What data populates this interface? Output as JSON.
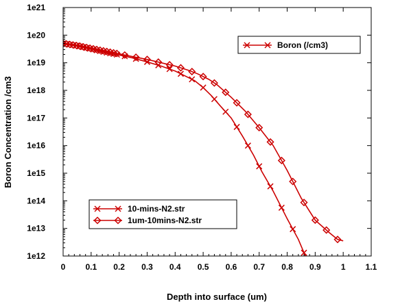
{
  "chart_data": {
    "type": "line",
    "xlabel": "Depth into surface (um)",
    "ylabel": "Boron Concentration /cm3",
    "xlim": [
      0,
      1.1
    ],
    "ylim_exponent": [
      12,
      21
    ],
    "y_scale": "log",
    "x_ticks": [
      "0",
      "0.1",
      "0.2",
      "0.3",
      "0.4",
      "0.5",
      "0.6",
      "0.7",
      "0.8",
      "0.9",
      "1",
      "1.1"
    ],
    "y_ticks": [
      "1e12",
      "1e13",
      "1e14",
      "1e15",
      "1e16",
      "1e17",
      "1e18",
      "1e19",
      "1e20",
      "1e21"
    ],
    "grid": false,
    "legends": [
      {
        "entries": [
          "Boron (/cm3)"
        ],
        "placement": "top-right"
      },
      {
        "entries": [
          "10-mins-N2.str",
          "1um-10mins-N2.str"
        ],
        "placement": "bottom-left"
      }
    ],
    "series": [
      {
        "name": "10-mins-N2.str",
        "marker": "x",
        "color": "#cc0000",
        "x": [
          0,
          0.05,
          0.1,
          0.15,
          0.2,
          0.25,
          0.3,
          0.35,
          0.4,
          0.43,
          0.47,
          0.5,
          0.53,
          0.56,
          0.6,
          0.64,
          0.68,
          0.71,
          0.75,
          0.8,
          0.84,
          0.865
        ],
        "y_log10": [
          19.7,
          19.62,
          19.5,
          19.38,
          19.28,
          19.17,
          19.03,
          18.88,
          18.7,
          18.55,
          18.35,
          18.1,
          17.8,
          17.45,
          17.0,
          16.35,
          15.65,
          15.05,
          14.35,
          13.35,
          12.6,
          12.0
        ]
      },
      {
        "name": "1um-10mins-N2.str",
        "marker": "diamond",
        "color": "#cc0000",
        "x": [
          0,
          0.05,
          0.1,
          0.15,
          0.2,
          0.25,
          0.3,
          0.35,
          0.4,
          0.45,
          0.48,
          0.52,
          0.55,
          0.6,
          0.65,
          0.7,
          0.75,
          0.8,
          0.85,
          0.9,
          0.95,
          0.98,
          1.0
        ],
        "y_log10": [
          19.7,
          19.62,
          19.52,
          19.42,
          19.32,
          19.22,
          19.12,
          19.0,
          18.88,
          18.72,
          18.6,
          18.4,
          18.2,
          17.75,
          17.25,
          16.65,
          16.0,
          15.1,
          14.1,
          13.3,
          12.85,
          12.6,
          12.55
        ]
      }
    ]
  }
}
